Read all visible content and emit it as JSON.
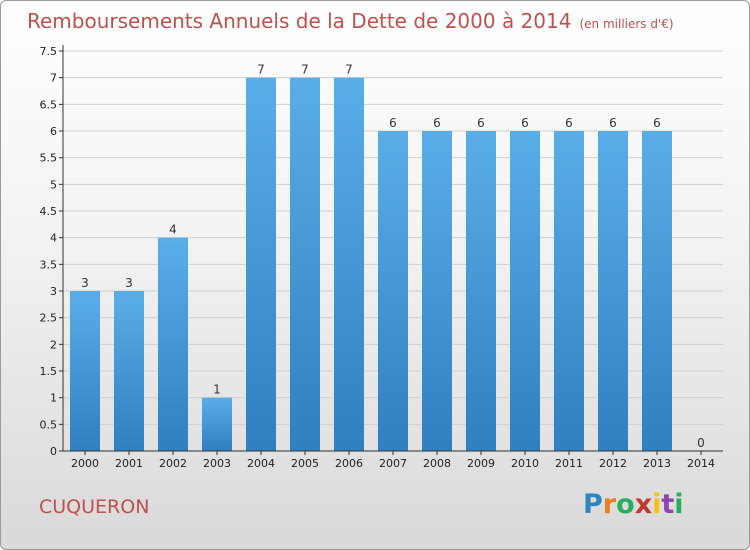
{
  "header": {
    "title": "Remboursements Annuels de la Dette de 2000 à 2014",
    "unit": "(en milliers d'€)"
  },
  "footer": {
    "town": "CUQUERON",
    "logo": "Proxiti"
  },
  "colors": {
    "title": "#c0504d",
    "bar_top": "#5aaee8",
    "bar_bottom": "#2f7fc1",
    "axis": "#333333",
    "grid": "#cfcfcf"
  },
  "chart_data": {
    "type": "bar",
    "title": "Remboursements Annuels de la Dette de 2000 à 2014",
    "subtitle": "(en milliers d'€)",
    "xlabel": "",
    "ylabel": "",
    "categories": [
      "2000",
      "2001",
      "2002",
      "2003",
      "2004",
      "2005",
      "2006",
      "2007",
      "2008",
      "2009",
      "2010",
      "2011",
      "2012",
      "2013",
      "2014"
    ],
    "values": [
      3,
      3,
      4,
      1,
      7,
      7,
      7,
      6,
      6,
      6,
      6,
      6,
      6,
      6,
      0
    ],
    "data_labels": [
      "3",
      "3",
      "4",
      "1",
      "7",
      "7",
      "7",
      "6",
      "6",
      "6",
      "6",
      "6",
      "6",
      "6",
      "0"
    ],
    "ylim": [
      0,
      7.5
    ],
    "yticks": [
      0,
      0.5,
      1,
      1.5,
      2,
      2.5,
      3,
      3.5,
      4,
      4.5,
      5,
      5.5,
      6,
      6.5,
      7,
      7.5
    ],
    "ytick_labels": [
      "0",
      "0.5",
      "1",
      "1.5",
      "2",
      "2.5",
      "3",
      "3.5",
      "4",
      "4.5",
      "5",
      "5.5",
      "6",
      "6.5",
      "7",
      "7.5"
    ],
    "grid": true,
    "legend": "none"
  }
}
